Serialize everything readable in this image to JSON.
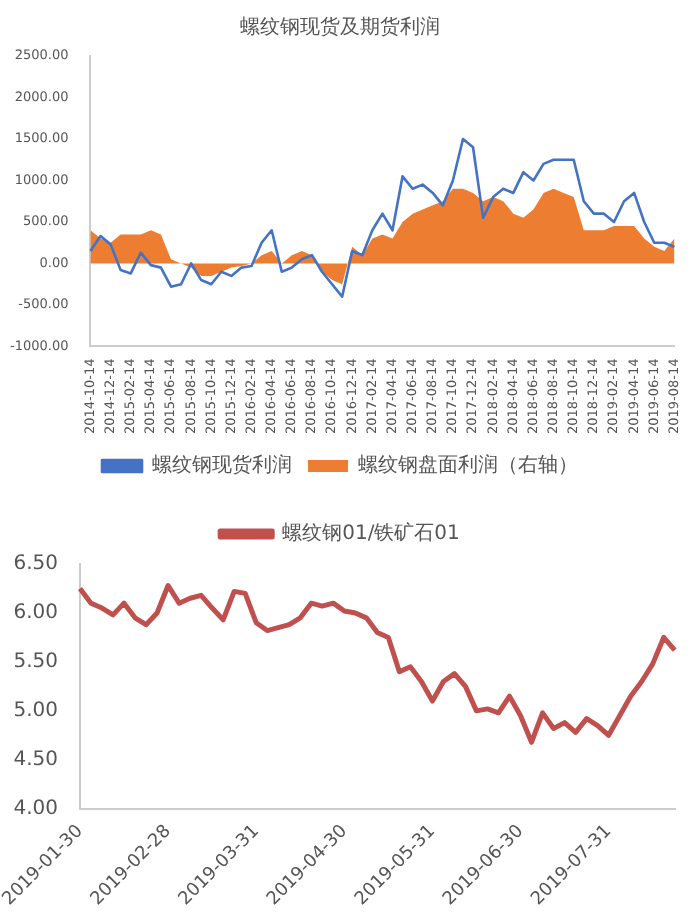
{
  "chart_data": [
    {
      "type": "area",
      "title": "螺纹钢现货及期货利润",
      "categories": [
        "2014-10-14",
        null,
        "2014-12-14",
        null,
        "2015-02-14",
        null,
        "2015-04-14",
        null,
        "2015-06-14",
        null,
        "2015-08-14",
        null,
        "2015-10-14",
        null,
        "2015-12-14",
        null,
        "2016-02-14",
        null,
        "2016-04-14",
        null,
        "2016-06-14",
        null,
        "2016-08-14",
        null,
        "2016-10-14",
        null,
        "2016-12-14",
        null,
        "2017-02-14",
        null,
        "2017-04-14",
        null,
        "2017-06-14",
        null,
        "2017-08-14",
        null,
        "2017-10-14",
        null,
        "2017-12-14",
        null,
        "2018-02-14",
        null,
        "2018-04-14",
        null,
        "2018-06-14",
        null,
        "2018-08-14",
        null,
        "2018-10-14",
        null,
        "2018-12-14",
        null,
        "2019-02-14",
        null,
        "2019-04-14",
        null,
        "2019-06-14",
        null,
        "2019-08-14"
      ],
      "series": [
        {
          "name": "螺纹钢盘面利润（右轴）",
          "type": "area",
          "color": "#ed7d31",
          "values": [
            400,
            300,
            250,
            350,
            350,
            350,
            400,
            350,
            50,
            0,
            -50,
            -150,
            -150,
            -100,
            -50,
            -30,
            0,
            100,
            150,
            0,
            100,
            150,
            100,
            -100,
            -200,
            -250,
            200,
            100,
            300,
            350,
            300,
            500,
            600,
            650,
            700,
            750,
            900,
            900,
            850,
            750,
            800,
            750,
            600,
            550,
            650,
            850,
            900,
            850,
            800,
            400,
            400,
            400,
            450,
            450,
            450,
            300,
            200,
            150,
            300
          ]
        },
        {
          "name": "螺纹钢现货利润",
          "type": "line",
          "color": "#4472c4",
          "values": [
            150,
            330,
            230,
            -80,
            -120,
            130,
            -20,
            -50,
            -280,
            -250,
            0,
            -200,
            -250,
            -100,
            -150,
            -50,
            -30,
            250,
            400,
            -100,
            -50,
            50,
            100,
            -100,
            -250,
            -400,
            150,
            100,
            400,
            600,
            400,
            1050,
            900,
            950,
            850,
            700,
            1000,
            1500,
            1400,
            550,
            800,
            900,
            850,
            1100,
            1000,
            1200,
            1250,
            1250,
            1250,
            750,
            600,
            600,
            500,
            750,
            850,
            500,
            250,
            250,
            200
          ]
        }
      ],
      "ylim": [
        -1000,
        2500
      ],
      "yticks": [
        {
          "value": -1000,
          "label": "-1000.00"
        },
        {
          "value": -500,
          "label": "-500.00"
        },
        {
          "value": 0,
          "label": "0.00"
        },
        {
          "value": 500,
          "label": "500.00"
        },
        {
          "value": 1000,
          "label": "1000.00"
        },
        {
          "value": 1500,
          "label": "1500.00"
        },
        {
          "value": 2000,
          "label": "2000.00"
        },
        {
          "value": 2500,
          "label": "2500.00"
        }
      ],
      "grid": false,
      "legend": "bottom"
    },
    {
      "type": "line",
      "categories": [
        "2019-01-30",
        null,
        null,
        null,
        null,
        null,
        null,
        null,
        "2019-02-28",
        null,
        null,
        null,
        null,
        null,
        null,
        null,
        "2019-03-31",
        null,
        null,
        null,
        null,
        null,
        null,
        null,
        "2019-04-30",
        null,
        null,
        null,
        null,
        null,
        null,
        null,
        "2019-05-31",
        null,
        null,
        null,
        null,
        null,
        null,
        null,
        "2019-06-30",
        null,
        null,
        null,
        null,
        null,
        null,
        null,
        "2019-07-31",
        null,
        null,
        null,
        null,
        null,
        null
      ],
      "series": [
        {
          "name": "螺纹钢01/铁矿石01",
          "color": "#c0504d",
          "values": [
            6.25,
            6.1,
            6.05,
            5.98,
            6.1,
            5.95,
            5.88,
            6.0,
            6.28,
            6.1,
            6.15,
            6.18,
            6.05,
            5.93,
            6.22,
            6.2,
            5.9,
            5.82,
            5.85,
            5.88,
            5.95,
            6.1,
            6.07,
            6.1,
            6.02,
            6.0,
            5.95,
            5.8,
            5.75,
            5.4,
            5.45,
            5.3,
            5.1,
            5.3,
            5.38,
            5.25,
            5.0,
            5.02,
            4.98,
            5.15,
            4.95,
            4.68,
            4.98,
            4.82,
            4.88,
            4.78,
            4.92,
            4.85,
            4.75,
            4.95,
            5.15,
            5.3,
            5.48,
            5.75,
            5.62
          ]
        }
      ],
      "ylim": [
        4,
        6.5
      ],
      "yticks": [
        {
          "value": 4,
          "label": "4.00"
        },
        {
          "value": 4.5,
          "label": "4.50"
        },
        {
          "value": 5,
          "label": "5.00"
        },
        {
          "value": 5.5,
          "label": "5.50"
        },
        {
          "value": 6,
          "label": "6.00"
        },
        {
          "value": 6.5,
          "label": "6.50"
        }
      ],
      "grid": false,
      "legend": "top"
    }
  ]
}
